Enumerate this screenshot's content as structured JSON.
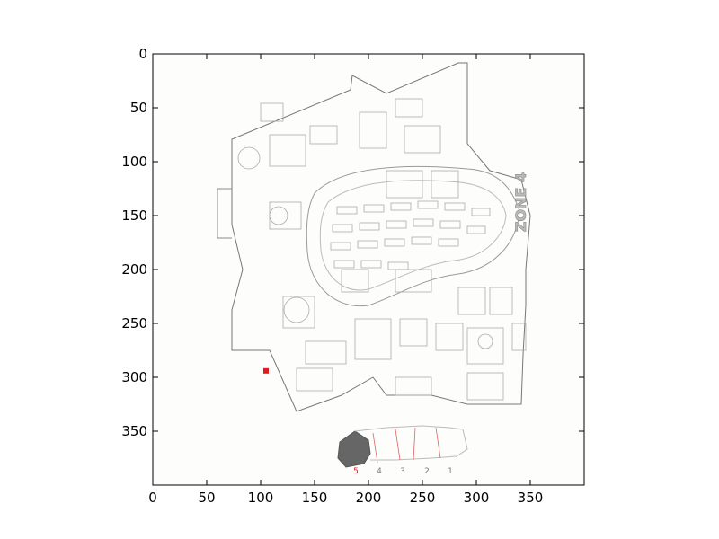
{
  "chart_data": {
    "type": "scatter",
    "title": "",
    "xlabel": "",
    "ylabel": "",
    "xlim": [
      0,
      400
    ],
    "ylim": [
      400,
      0
    ],
    "y_inverted": true,
    "grid": false,
    "x_ticks": [
      0,
      50,
      100,
      150,
      200,
      250,
      300,
      350
    ],
    "y_ticks": [
      0,
      50,
      100,
      150,
      200,
      250,
      300,
      350
    ],
    "background_image": "grayscale store floor plan map",
    "map_text": {
      "zone_label": "ZONE 4",
      "minimap_zone_numbers": [
        "5",
        "4",
        "3",
        "2",
        "1"
      ],
      "highlighted_zone": "5"
    },
    "series": [
      {
        "marker": "square",
        "color": "#e41a1c",
        "points": [
          {
            "x": 105,
            "y": 294
          }
        ]
      }
    ]
  }
}
